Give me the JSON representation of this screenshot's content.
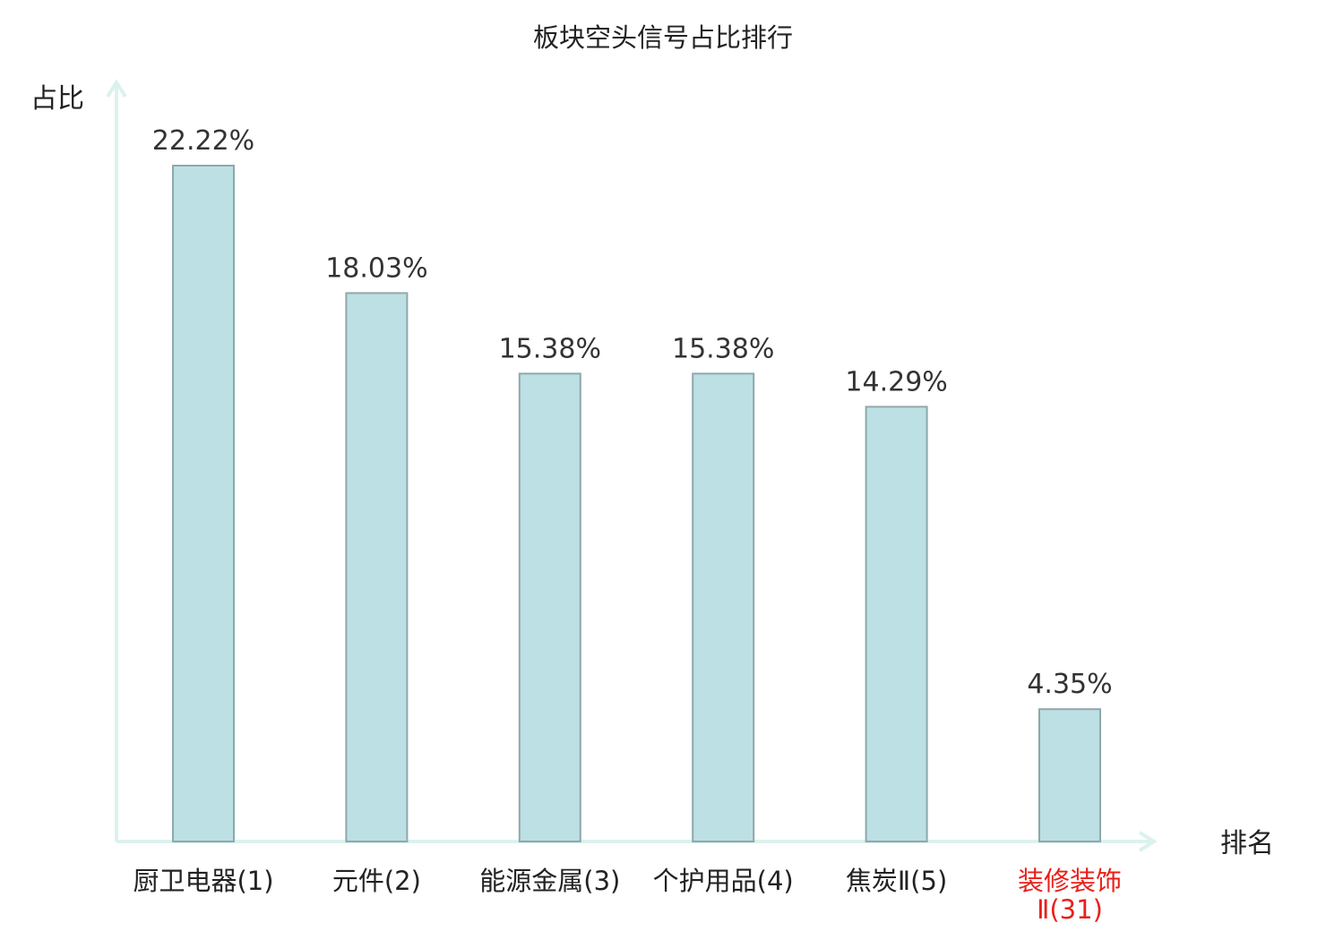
{
  "chart_data": {
    "type": "bar",
    "title": "板块空头信号占比排行",
    "ylabel": "占比",
    "xlabel": "排名",
    "ylim": [
      0,
      25
    ],
    "grid": false,
    "categories": [
      "厨卫电器(1)",
      "元件(2)",
      "能源金属(3)",
      "个护用品(4)",
      "焦炭Ⅱ(5)",
      "装修装饰Ⅱ(31)"
    ],
    "category_label_lines": [
      [
        "厨卫电器(1)"
      ],
      [
        "元件(2)"
      ],
      [
        "能源金属(3)"
      ],
      [
        "个护用品(4)"
      ],
      [
        "焦炭Ⅱ(5)"
      ],
      [
        "装修装饰",
        "Ⅱ(31)"
      ]
    ],
    "values": [
      22.22,
      18.03,
      15.38,
      15.38,
      14.29,
      4.35
    ],
    "value_labels": [
      "22.22%",
      "18.03%",
      "15.38%",
      "15.38%",
      "14.29%",
      "4.35%"
    ],
    "highlight_index": 5,
    "colors": {
      "bar_fill": "#bce0e3",
      "bar_stroke": "#8fa8aa",
      "axis": "#dcf1ee",
      "highlight_text": "#e8201a",
      "text": "#222222"
    }
  }
}
